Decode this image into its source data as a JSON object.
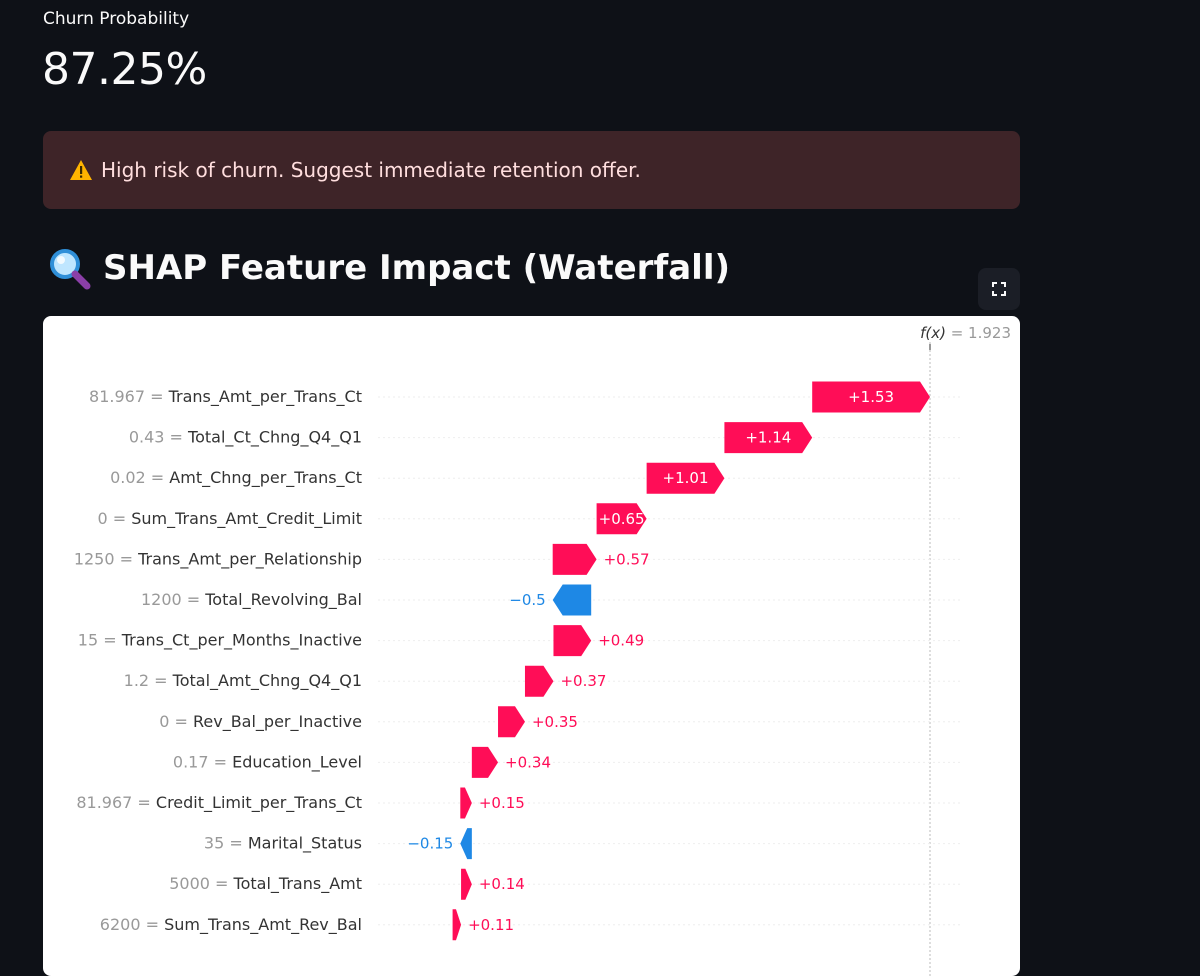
{
  "metric": {
    "label": "Churn Probability",
    "value": "87.25%"
  },
  "alert": {
    "icon": "warning-icon",
    "text": "High risk of churn. Suggest immediate retention offer."
  },
  "section": {
    "icon": "magnifying-glass-icon",
    "title": "SHAP Feature Impact (Waterfall)"
  },
  "toolbar": {
    "fullscreen_icon": "fullscreen-icon"
  },
  "colors": {
    "background": "#0e1117",
    "alert_bg": "#3e2428",
    "positive": "#ff0d57",
    "negative": "#1e88e5"
  },
  "chart_data": {
    "type": "waterfall",
    "fx_label": "f(x)",
    "fx_value": "1.923",
    "features": [
      {
        "value": "81.967",
        "name": "Trans_Amt_per_Trans_Ct",
        "shap": 1.53,
        "label": "+1.53"
      },
      {
        "value": "0.43",
        "name": "Total_Ct_Chng_Q4_Q1",
        "shap": 1.14,
        "label": "+1.14"
      },
      {
        "value": "0.02",
        "name": "Amt_Chng_per_Trans_Ct",
        "shap": 1.01,
        "label": "+1.01"
      },
      {
        "value": "0",
        "name": "Sum_Trans_Amt_Credit_Limit",
        "shap": 0.65,
        "label": "+0.65"
      },
      {
        "value": "1250",
        "name": "Trans_Amt_per_Relationship",
        "shap": 0.57,
        "label": "+0.57"
      },
      {
        "value": "1200",
        "name": "Total_Revolving_Bal",
        "shap": -0.5,
        "label": "−0.5"
      },
      {
        "value": "15",
        "name": "Trans_Ct_per_Months_Inactive",
        "shap": 0.49,
        "label": "+0.49"
      },
      {
        "value": "1.2",
        "name": "Total_Amt_Chng_Q4_Q1",
        "shap": 0.37,
        "label": "+0.37"
      },
      {
        "value": "0",
        "name": "Rev_Bal_per_Inactive",
        "shap": 0.35,
        "label": "+0.35"
      },
      {
        "value": "0.17",
        "name": "Education_Level",
        "shap": 0.34,
        "label": "+0.34"
      },
      {
        "value": "81.967",
        "name": "Credit_Limit_per_Trans_Ct",
        "shap": 0.15,
        "label": "+0.15"
      },
      {
        "value": "35",
        "name": "Marital_Status",
        "shap": -0.15,
        "label": "−0.15"
      },
      {
        "value": "5000",
        "name": "Total_Trans_Amt",
        "shap": 0.14,
        "label": "+0.14"
      },
      {
        "value": "6200",
        "name": "Sum_Trans_Amt_Rev_Bal",
        "shap": 0.11,
        "label": "+0.11"
      }
    ]
  }
}
